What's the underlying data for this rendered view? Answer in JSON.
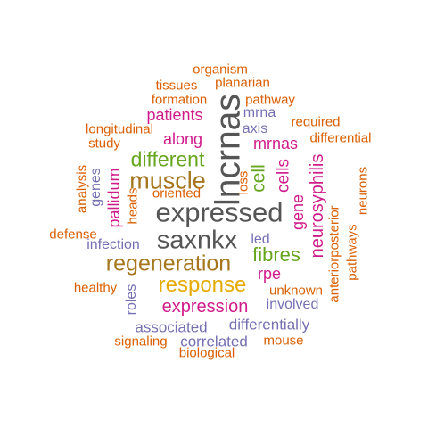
{
  "palette": {
    "orange": "#d95f02",
    "gray": "#555555",
    "purple": "#7570b3",
    "magenta": "#d01c8b",
    "green": "#66a61e",
    "gold": "#e6ab02",
    "brown": "#a6761d"
  },
  "words": [
    {
      "text": "organism",
      "color": "orange"
    },
    {
      "text": "tissues",
      "color": "orange"
    },
    {
      "text": "planarian",
      "color": "orange"
    },
    {
      "text": "formation",
      "color": "orange"
    },
    {
      "text": "pathway",
      "color": "orange"
    },
    {
      "text": "patients",
      "color": "magenta"
    },
    {
      "text": "mrna",
      "color": "purple"
    },
    {
      "text": "required",
      "color": "orange"
    },
    {
      "text": "longitudinal",
      "color": "orange"
    },
    {
      "text": "study",
      "color": "orange"
    },
    {
      "text": "axis",
      "color": "purple"
    },
    {
      "text": "differential",
      "color": "orange"
    },
    {
      "text": "along",
      "color": "magenta"
    },
    {
      "text": "mrnas",
      "color": "magenta"
    },
    {
      "text": "different",
      "color": "green"
    },
    {
      "text": "muscle",
      "color": "brown"
    },
    {
      "text": "lncrnas",
      "color": "gray"
    },
    {
      "text": "cell",
      "color": "green"
    },
    {
      "text": "cells",
      "color": "magenta"
    },
    {
      "text": "neurosyphilis",
      "color": "magenta"
    },
    {
      "text": "analysis",
      "color": "orange"
    },
    {
      "text": "genes",
      "color": "purple"
    },
    {
      "text": "pallidum",
      "color": "magenta"
    },
    {
      "text": "heads",
      "color": "orange"
    },
    {
      "text": "oriented",
      "color": "orange"
    },
    {
      "text": "loss",
      "color": "orange"
    },
    {
      "text": "gene",
      "color": "magenta"
    },
    {
      "text": "neurons",
      "color": "orange"
    },
    {
      "text": "expressed",
      "color": "gray"
    },
    {
      "text": "defense",
      "color": "orange"
    },
    {
      "text": "infection",
      "color": "purple"
    },
    {
      "text": "saxnkx",
      "color": "gray"
    },
    {
      "text": "led",
      "color": "purple"
    },
    {
      "text": "fibres",
      "color": "green"
    },
    {
      "text": "anteriorposterior",
      "color": "orange"
    },
    {
      "text": "pathways",
      "color": "orange"
    },
    {
      "text": "regeneration",
      "color": "brown"
    },
    {
      "text": "rpe",
      "color": "magenta"
    },
    {
      "text": "healthy",
      "color": "orange"
    },
    {
      "text": "response",
      "color": "gold"
    },
    {
      "text": "unknown",
      "color": "orange"
    },
    {
      "text": "roles",
      "color": "purple"
    },
    {
      "text": "involved",
      "color": "purple"
    },
    {
      "text": "expression",
      "color": "magenta"
    },
    {
      "text": "associated",
      "color": "purple"
    },
    {
      "text": "differentially",
      "color": "purple"
    },
    {
      "text": "signaling",
      "color": "orange"
    },
    {
      "text": "correlated",
      "color": "purple"
    },
    {
      "text": "mouse",
      "color": "orange"
    },
    {
      "text": "biological",
      "color": "orange"
    }
  ]
}
